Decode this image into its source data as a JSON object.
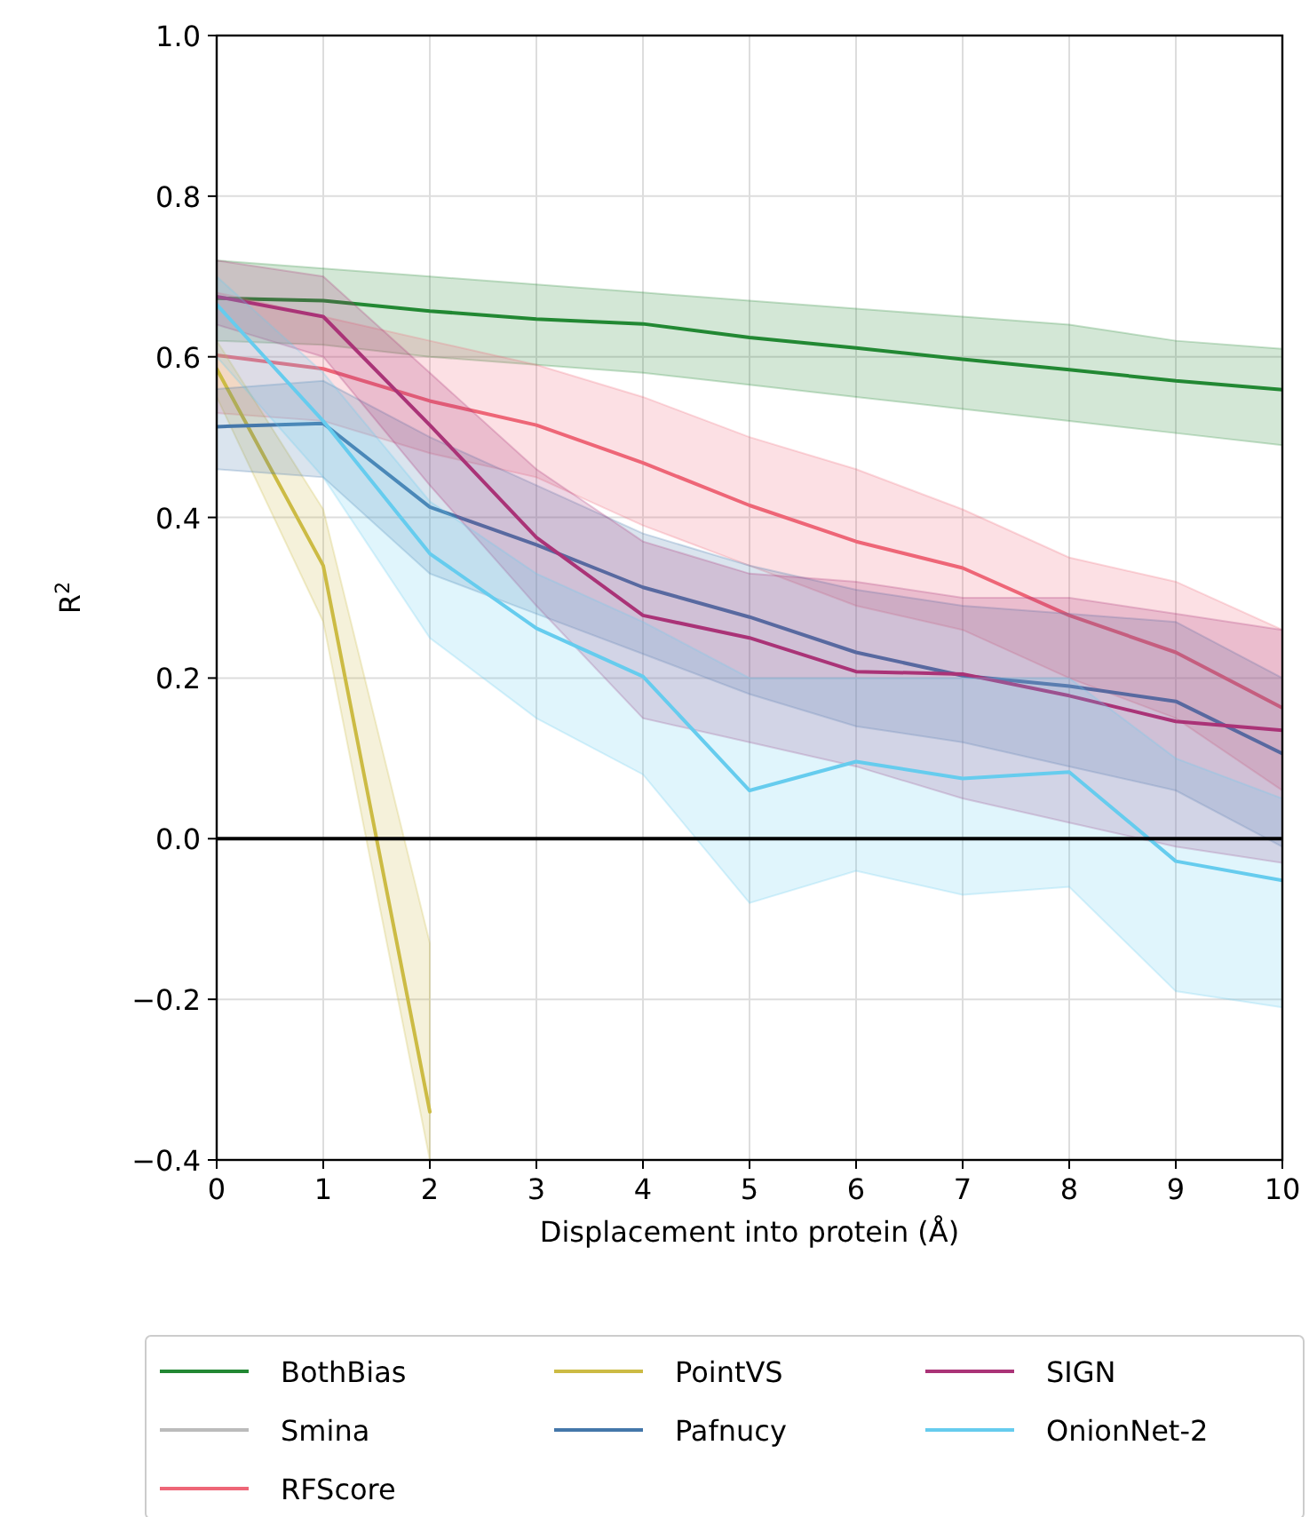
{
  "chart_data": {
    "type": "line",
    "xlabel": "Displacement into protein (Å)",
    "ylabel": "R$^{2}$",
    "x": [
      0,
      1,
      2,
      3,
      4,
      5,
      6,
      7,
      8,
      9,
      10
    ],
    "xlim": [
      0,
      10
    ],
    "xticks": [
      0,
      1,
      2,
      3,
      4,
      5,
      6,
      7,
      8,
      9,
      10
    ],
    "ylim": [
      -0.4,
      1.0
    ],
    "yticks": [
      {
        "value": -0.4,
        "label": "−0.4"
      },
      {
        "value": -0.2,
        "label": "−0.2"
      },
      {
        "value": 0,
        "label": "0.0"
      },
      {
        "value": 0.2,
        "label": "0.2"
      },
      {
        "value": 0.4,
        "label": "0.4"
      },
      {
        "value": 0.6,
        "label": "0.6"
      },
      {
        "value": 0.8,
        "label": "0.8"
      },
      {
        "value": 1.0,
        "label": "1.0"
      }
    ],
    "grid": true,
    "legend": "bottom",
    "line_style": "solid",
    "ref_lines": [
      {
        "axis": "y",
        "value": 0,
        "color": "#000000"
      }
    ],
    "series": [
      {
        "name": "BothBias",
        "color": "#228833",
        "values": [
          0.673,
          0.67,
          0.657,
          0.647,
          0.641,
          0.624,
          0.611,
          0.597,
          0.584,
          0.57,
          0.559
        ],
        "upper": [
          0.72,
          0.71,
          0.7,
          0.69,
          0.68,
          0.67,
          0.66,
          0.65,
          0.64,
          0.62,
          0.61
        ],
        "lower": [
          0.62,
          0.615,
          0.6,
          0.59,
          0.58,
          0.565,
          0.55,
          0.535,
          0.52,
          0.505,
          0.49
        ]
      },
      {
        "name": "Smina",
        "color": "#bbbbbb",
        "values": [
          null,
          null,
          null,
          null,
          null,
          null,
          null,
          null,
          null,
          null,
          null
        ]
      },
      {
        "name": "RFScore",
        "color": "#ee6677",
        "values": [
          0.602,
          0.585,
          0.545,
          0.515,
          0.468,
          0.415,
          0.37,
          0.337,
          0.278,
          0.232,
          0.163
        ],
        "upper": [
          0.68,
          0.65,
          0.62,
          0.59,
          0.55,
          0.5,
          0.46,
          0.41,
          0.35,
          0.32,
          0.26
        ],
        "lower": [
          0.53,
          0.52,
          0.48,
          0.45,
          0.39,
          0.34,
          0.29,
          0.26,
          0.2,
          0.15,
          0.06
        ]
      },
      {
        "name": "PointVS",
        "color": "#ccbb44",
        "values": [
          0.585,
          0.34,
          -0.34,
          null,
          null,
          null,
          null,
          null,
          null,
          null,
          null
        ],
        "upper": [
          0.62,
          0.41,
          -0.13,
          null,
          null,
          null,
          null,
          null,
          null,
          null,
          null
        ],
        "lower": [
          0.55,
          0.27,
          -0.4,
          null,
          null,
          null,
          null,
          null,
          null,
          null,
          null
        ]
      },
      {
        "name": "Pafnucy",
        "color": "#4477aa",
        "values": [
          0.513,
          0.517,
          0.413,
          0.366,
          0.313,
          0.276,
          0.232,
          0.203,
          0.19,
          0.171,
          0.106
        ],
        "upper": [
          0.56,
          0.57,
          0.5,
          0.44,
          0.38,
          0.34,
          0.31,
          0.29,
          0.28,
          0.27,
          0.2
        ],
        "lower": [
          0.46,
          0.45,
          0.33,
          0.28,
          0.23,
          0.18,
          0.14,
          0.12,
          0.09,
          0.06,
          -0.01
        ]
      },
      {
        "name": "SIGN",
        "color": "#aa3377",
        "values": [
          0.675,
          0.65,
          0.515,
          0.375,
          0.278,
          0.25,
          0.208,
          0.205,
          0.178,
          0.146,
          0.135
        ],
        "upper": [
          0.72,
          0.7,
          0.58,
          0.46,
          0.37,
          0.33,
          0.32,
          0.3,
          0.3,
          0.28,
          0.26
        ],
        "lower": [
          0.64,
          0.6,
          0.44,
          0.29,
          0.15,
          0.12,
          0.09,
          0.05,
          0.02,
          -0.01,
          -0.03
        ]
      },
      {
        "name": "OnionNet-2",
        "color": "#66ccee",
        "values": [
          0.665,
          0.52,
          0.355,
          0.262,
          0.202,
          0.06,
          0.096,
          0.075,
          0.083,
          -0.028,
          -0.052
        ],
        "upper": [
          0.7,
          0.58,
          0.42,
          0.33,
          0.27,
          0.2,
          0.2,
          0.2,
          0.2,
          0.1,
          0.05
        ],
        "lower": [
          0.6,
          0.45,
          0.25,
          0.15,
          0.08,
          -0.08,
          -0.04,
          -0.07,
          -0.06,
          -0.19,
          -0.21
        ]
      }
    ]
  }
}
